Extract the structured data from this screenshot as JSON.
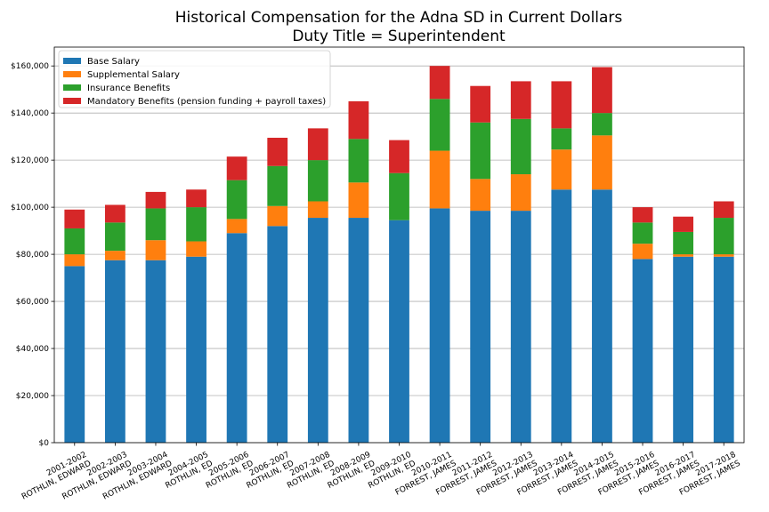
{
  "chart_data": {
    "type": "bar",
    "stacked": true,
    "title": "Historical Compensation for the Adna SD in Current Dollars",
    "subtitle": "Duty Title = Superintendent",
    "xlabel": "",
    "ylabel": "",
    "ylim": [
      0,
      168000
    ],
    "yticks": [
      0,
      20000,
      40000,
      60000,
      80000,
      100000,
      120000,
      140000,
      160000
    ],
    "ytick_labels": [
      "$0",
      "$20,000",
      "$40,000",
      "$60,000",
      "$80,000",
      "$100,000",
      "$120,000",
      "$140,000",
      "$160,000"
    ],
    "grid": "horizontal",
    "legend_position": "top-left",
    "categories": [
      [
        "2001-2002",
        "ROTHLIN, EDWARD"
      ],
      [
        "2002-2003",
        "ROTHLIN, EDWARD"
      ],
      [
        "2003-2004",
        "ROTHLIN, EDWARD"
      ],
      [
        "2004-2005",
        "ROTHLIN, ED"
      ],
      [
        "2005-2006",
        "ROTHLIN, ED"
      ],
      [
        "2006-2007",
        "ROTHLIN, ED"
      ],
      [
        "2007-2008",
        "ROTHLIN, ED"
      ],
      [
        "2008-2009",
        "ROTHLIN, ED"
      ],
      [
        "2009-2010",
        "ROTHLIN, ED"
      ],
      [
        "2010-2011",
        "FORREST, JAMES"
      ],
      [
        "2011-2012",
        "FORREST, JAMES"
      ],
      [
        "2012-2013",
        "FORREST, JAMES"
      ],
      [
        "2013-2014",
        "FORREST, JAMES"
      ],
      [
        "2014-2015",
        "FORREST, JAMES"
      ],
      [
        "2015-2016",
        "FORREST, JAMES"
      ],
      [
        "2016-2017",
        "FORREST, JAMES"
      ],
      [
        "2017-2018",
        "FORREST, JAMES"
      ]
    ],
    "series": [
      {
        "name": "Base Salary",
        "color": "#1f77b4",
        "values": [
          75000,
          77500,
          77500,
          79000,
          89000,
          92000,
          95500,
          95500,
          94500,
          99500,
          98500,
          98500,
          107500,
          107500,
          78000,
          79000,
          79000
        ]
      },
      {
        "name": "Supplemental Salary",
        "color": "#ff7f0e",
        "values": [
          5000,
          4000,
          8500,
          6500,
          6000,
          8500,
          7000,
          15000,
          0,
          24500,
          13500,
          15500,
          17000,
          23000,
          6500,
          1000,
          1000
        ]
      },
      {
        "name": "Insurance Benefits",
        "color": "#2ca02c",
        "values": [
          11000,
          12000,
          13500,
          14500,
          16500,
          17000,
          17500,
          18500,
          20000,
          22000,
          24000,
          23500,
          9000,
          9500,
          9000,
          9500,
          15500
        ]
      },
      {
        "name": "Mandatory Benefits (pension funding + payroll taxes)",
        "color": "#d62728",
        "values": [
          8000,
          7500,
          7000,
          7500,
          10000,
          12000,
          13500,
          16000,
          14000,
          14000,
          15500,
          16000,
          20000,
          19500,
          6500,
          6500,
          7000
        ]
      }
    ]
  }
}
